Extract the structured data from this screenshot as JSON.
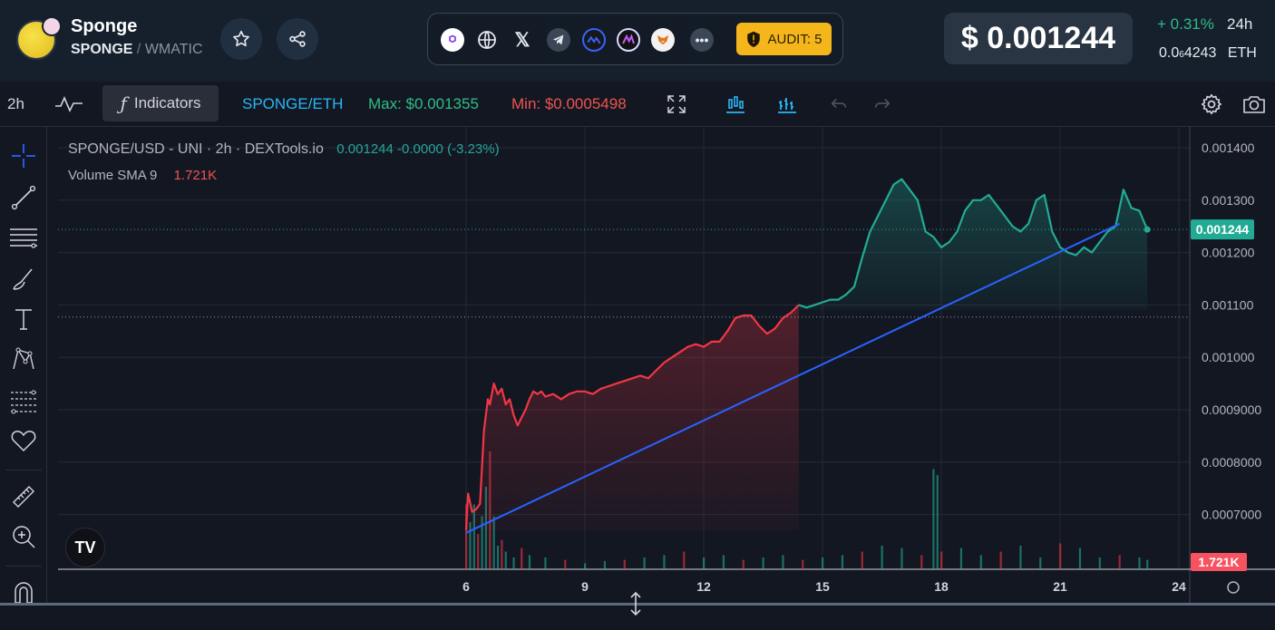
{
  "header": {
    "token_name": "Sponge",
    "token_symbol": "SPONGE",
    "separator": "/",
    "quote_symbol": "WMATIC",
    "favorite_icon": "star-icon",
    "share_icon": "share-icon",
    "links": [
      "polygon-icon",
      "globe-icon",
      "x-icon",
      "telegram-icon",
      "coinmarketcap-icon",
      "multichain-icon",
      "metamask-icon",
      "more-icon"
    ],
    "audit_label": "AUDIT: 5",
    "price": "$ 0.001244",
    "change": "+ 0.31%",
    "change_period": "24h",
    "eth_price_prefix": "0.0",
    "eth_price_sub": "6",
    "eth_price_rest": "4243",
    "eth_unit": "ETH"
  },
  "toolbar": {
    "interval": "2h",
    "indicators_label": "Indicators",
    "pair": "SPONGE/ETH",
    "max": "Max: $0.001355",
    "min": "Min: $0.0005498",
    "colors": {
      "pair": "#29b6f6",
      "max": "#2ebd85",
      "min": "#ef5350"
    }
  },
  "chart": {
    "legend_title": "SPONGE/USD - UNI · 2h · DEXTools.io",
    "legend_values": "0.001244  -0.0000 (-3.23%)",
    "volume_label": "Volume SMA 9",
    "volume_value": "1.721K",
    "price_tag": "0.001244",
    "volume_tag": "1.721K",
    "tv_logo": "TV"
  },
  "chart_data": {
    "type": "line",
    "title": "SPONGE/USD - UNI · 2h · DEXTools.io",
    "x_tick_labels": [
      "6",
      "9",
      "12",
      "15",
      "18",
      "21",
      "24"
    ],
    "y_tick_labels": [
      "0.001400",
      "0.001300",
      "0.001200",
      "0.001100",
      "0.001000",
      "0.0009000",
      "0.0008000",
      "0.0007000"
    ],
    "ylim": [
      0.00065,
      0.00142
    ],
    "xlim": [
      6,
      24
    ],
    "series": [
      {
        "x": [
          6.0,
          6.05,
          6.15,
          6.25,
          6.35,
          6.45,
          6.55,
          6.6,
          6.7,
          6.8,
          6.9,
          7.0,
          7.1,
          7.2,
          7.3,
          7.4,
          7.5,
          7.6,
          7.7,
          7.8,
          7.9,
          8.0,
          8.2,
          8.4,
          8.6,
          8.8,
          9.0,
          9.2,
          9.4,
          9.6,
          9.8,
          10.0,
          10.2,
          10.4,
          10.6,
          10.8,
          11.0,
          11.2,
          11.4,
          11.6,
          11.8,
          12.0,
          12.2,
          12.4,
          12.6,
          12.8,
          13.0,
          13.2,
          13.4,
          13.6,
          13.8,
          14.0,
          14.2,
          14.4,
          14.6,
          14.8,
          15.0,
          15.2,
          15.4,
          15.6,
          15.8,
          16.0,
          16.2,
          16.4,
          16.6,
          16.8,
          17.0,
          17.2,
          17.4,
          17.6,
          17.8,
          18.0,
          18.2,
          18.4,
          18.6,
          18.8,
          19.0,
          19.2,
          19.4,
          19.6,
          19.8,
          20.0,
          20.2,
          20.4,
          20.6,
          20.8,
          21.0,
          21.2,
          21.4,
          21.6,
          21.8,
          22.0,
          22.2,
          22.4,
          22.6,
          22.8,
          23.0,
          23.2
        ],
        "y": [
          0.00067,
          0.00074,
          0.000705,
          0.00071,
          0.00072,
          0.00086,
          0.00092,
          0.00091,
          0.00095,
          0.00093,
          0.00094,
          0.00091,
          0.00092,
          0.00089,
          0.00087,
          0.000885,
          0.0009,
          0.00092,
          0.000935,
          0.00093,
          0.000935,
          0.000925,
          0.00093,
          0.00092,
          0.00093,
          0.000935,
          0.000935,
          0.00093,
          0.00094,
          0.000945,
          0.00095,
          0.000955,
          0.00096,
          0.000965,
          0.00096,
          0.000975,
          0.00099,
          0.001,
          0.00101,
          0.00102,
          0.001025,
          0.00102,
          0.00103,
          0.00103,
          0.00105,
          0.001075,
          0.00108,
          0.00108,
          0.00106,
          0.001045,
          0.001055,
          0.001075,
          0.001085,
          0.0011,
          0.001095,
          0.0011,
          0.001105,
          0.00111,
          0.00111,
          0.00112,
          0.001135,
          0.00119,
          0.00124,
          0.00127,
          0.0013,
          0.00133,
          0.00134,
          0.00132,
          0.0013,
          0.00124,
          0.00123,
          0.00121,
          0.00122,
          0.00124,
          0.00128,
          0.0013,
          0.0013,
          0.00131,
          0.00129,
          0.00127,
          0.00125,
          0.00124,
          0.001255,
          0.0013,
          0.00131,
          0.00124,
          0.00121,
          0.0012,
          0.001195,
          0.00121,
          0.0012,
          0.00122,
          0.00124,
          0.00125,
          0.00132,
          0.001285,
          0.00128,
          0.001244
        ]
      }
    ],
    "volume_x": [
      6.0,
      6.1,
      6.2,
      6.3,
      6.4,
      6.5,
      6.6,
      6.7,
      6.8,
      6.9,
      7.0,
      7.2,
      7.4,
      7.6,
      8.0,
      8.5,
      9.0,
      9.5,
      10.0,
      10.5,
      11.0,
      11.5,
      12.0,
      12.5,
      13.0,
      13.5,
      14.0,
      14.5,
      15.0,
      15.5,
      16.0,
      16.5,
      17.0,
      17.5,
      17.8,
      17.9,
      18.0,
      18.5,
      19.0,
      19.5,
      20.0,
      20.5,
      21.0,
      21.5,
      22.0,
      22.5,
      23.0,
      23.2
    ],
    "volume_y": [
      0.55,
      0.4,
      0.55,
      0.3,
      0.45,
      0.7,
      1.0,
      0.45,
      0.2,
      0.25,
      0.15,
      0.1,
      0.18,
      0.12,
      0.1,
      0.08,
      0.05,
      0.07,
      0.08,
      0.1,
      0.12,
      0.15,
      0.1,
      0.12,
      0.08,
      0.1,
      0.12,
      0.08,
      0.1,
      0.12,
      0.15,
      0.2,
      0.18,
      0.12,
      0.85,
      0.8,
      0.15,
      0.18,
      0.12,
      0.15,
      0.2,
      0.1,
      0.22,
      0.18,
      0.1,
      0.12,
      0.1,
      0.08
    ],
    "trendline": {
      "from": [
        6.0,
        0.000665
      ],
      "to": [
        22.5,
        0.001255
      ]
    },
    "last_price": 0.001244,
    "high_line": 0.001244,
    "dotted_level": 0.001077,
    "colors": {
      "down": "#f23645",
      "up": "#22ab94",
      "trendline": "#2962ff",
      "grid": "#252a35"
    }
  }
}
